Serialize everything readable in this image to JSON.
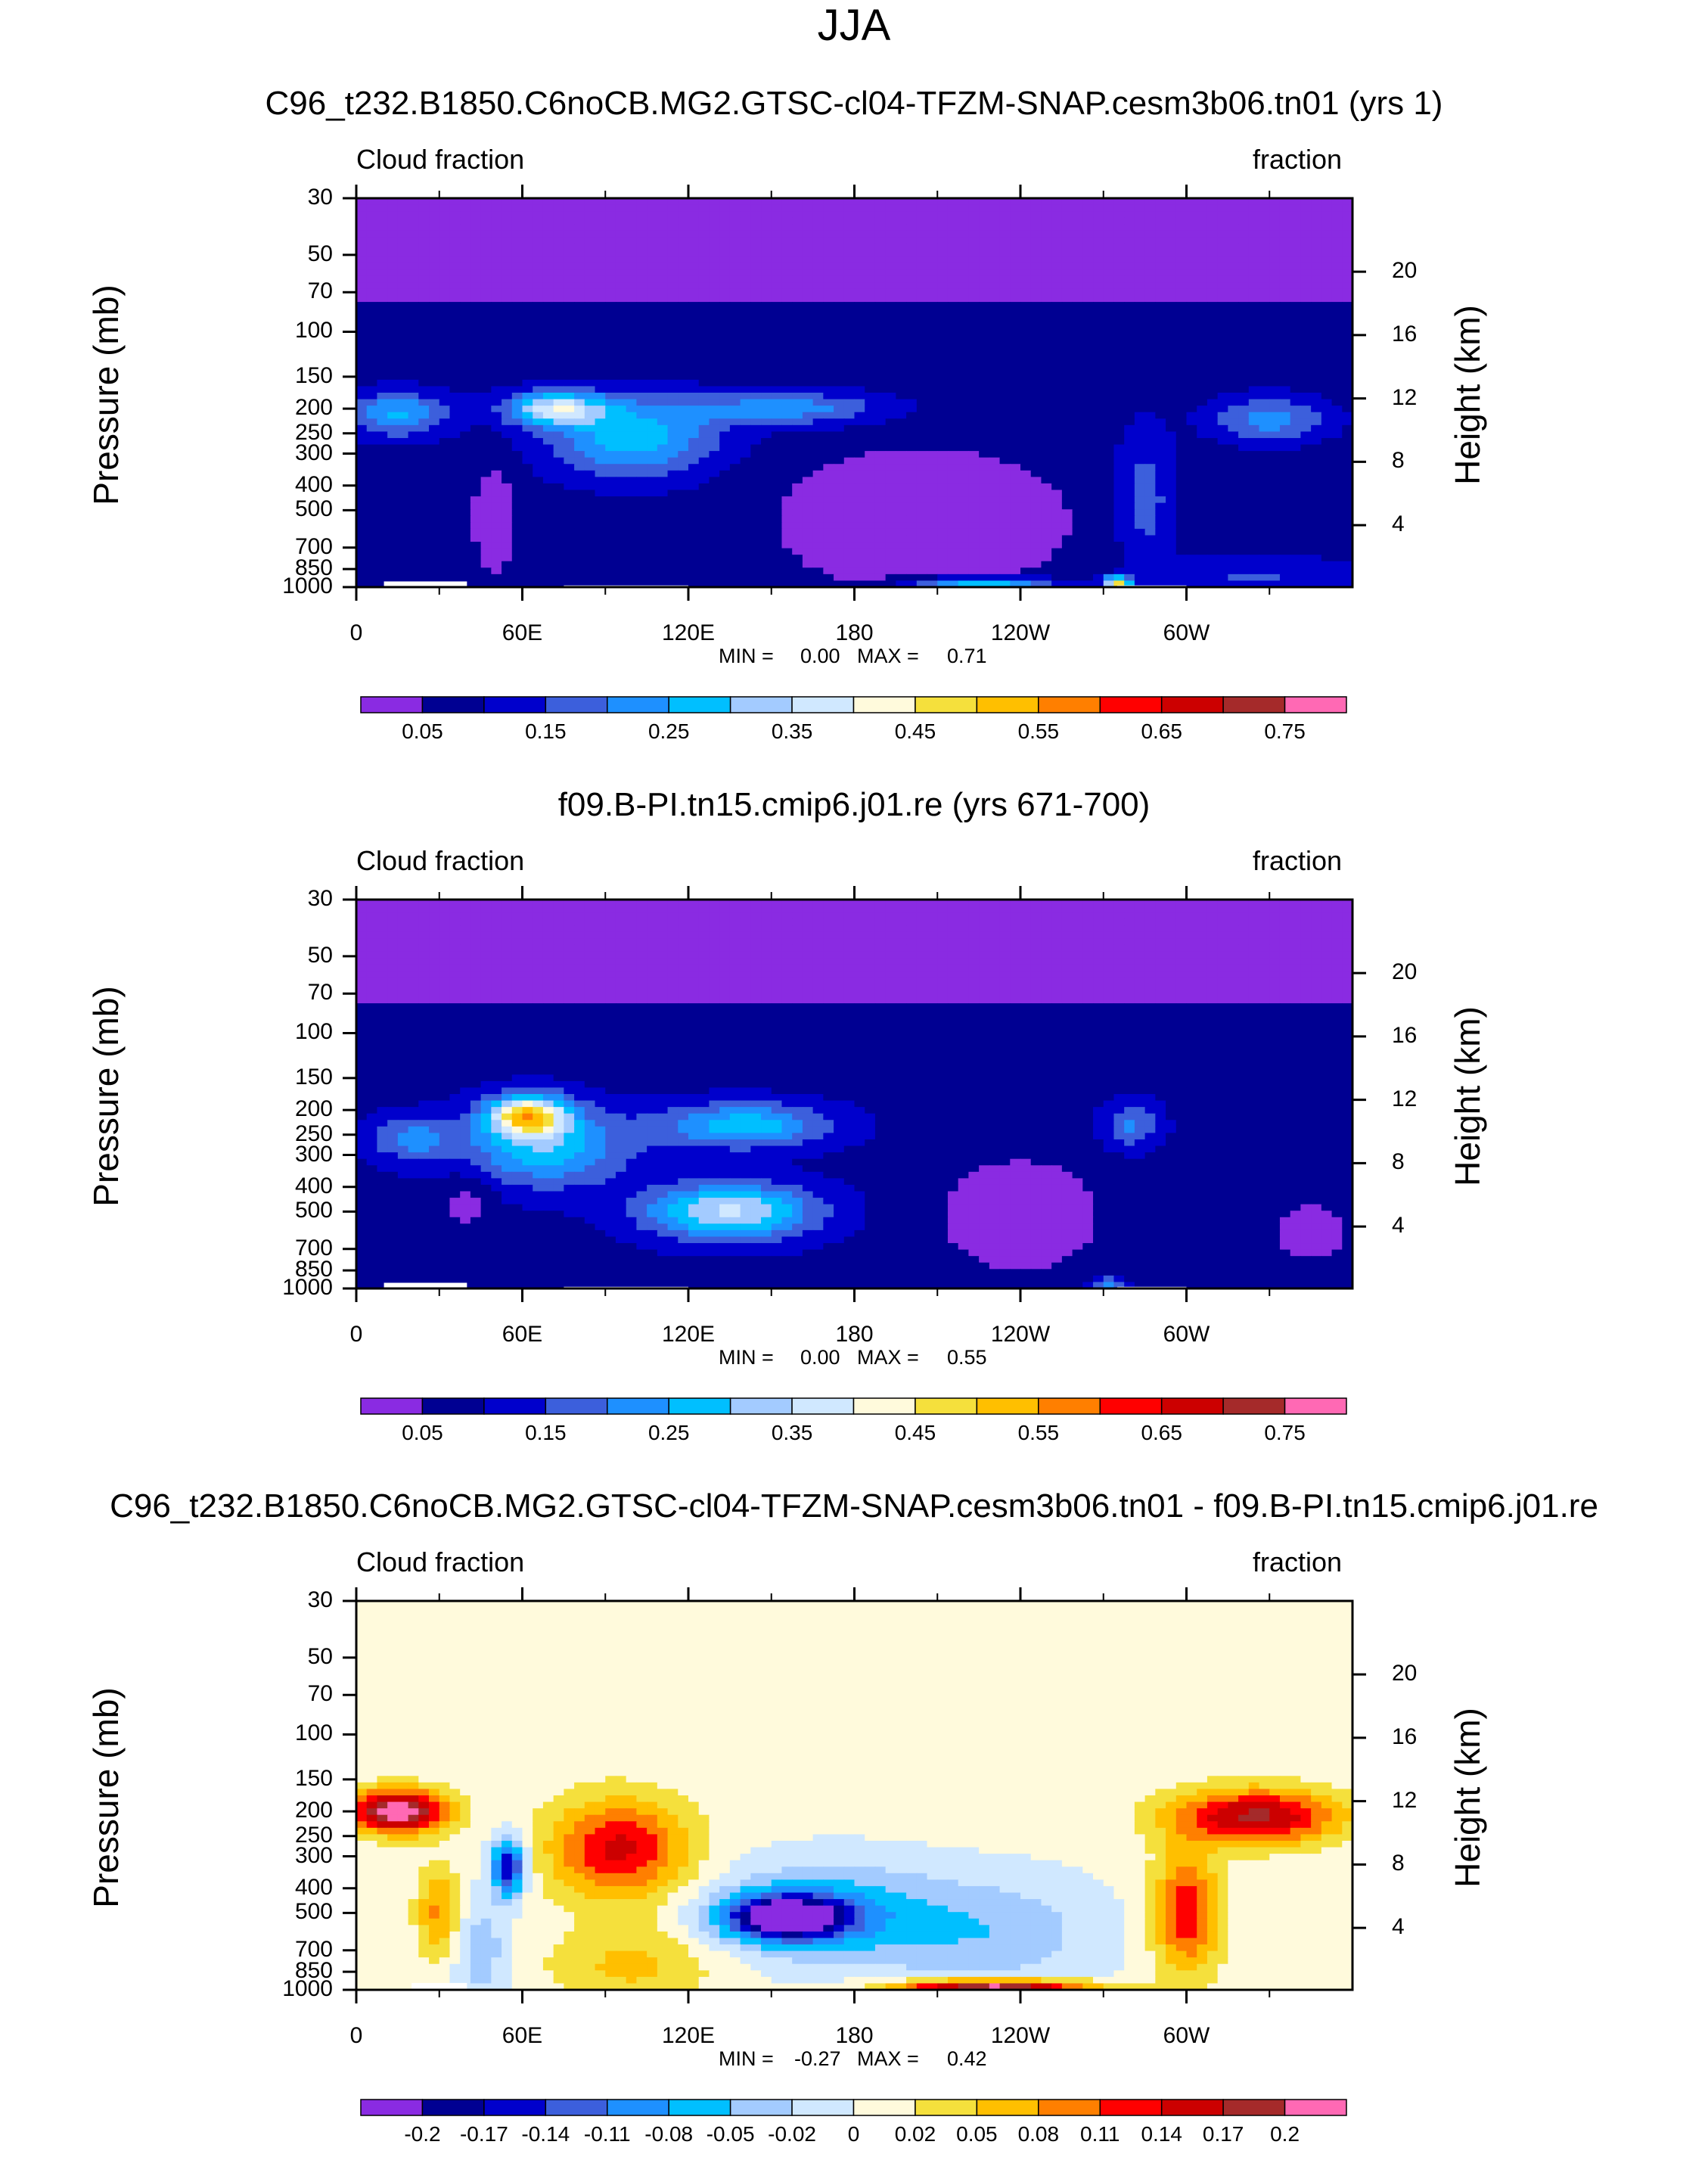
{
  "page": {
    "title": "JJA"
  },
  "chart_data": [
    {
      "type": "heatmap",
      "title": "C96_t232.B1850.C6noCB.MG2.GTSC-cl04-TFZM-SNAP.cesm3b06.tn01 (yrs 1)",
      "left_label": "Cloud fraction",
      "right_label": "fraction",
      "ylabel": "Pressure (mb)",
      "y2label": "Height (km)",
      "x_ticks": [
        "0",
        "60E",
        "120E",
        "180",
        "120W",
        "60W"
      ],
      "y_ticks": [
        "30",
        "50",
        "70",
        "100",
        "150",
        "200",
        "250",
        "300",
        "400",
        "500",
        "700",
        "850",
        "1000"
      ],
      "y2_ticks": [
        "20",
        "16",
        "12",
        "8",
        "4"
      ],
      "min_label": "MIN =",
      "min_value": "0.00",
      "max_label": "MAX =",
      "max_value": "0.71",
      "colorbar_labels": [
        "0.05",
        "0.15",
        "0.25",
        "0.35",
        "0.45",
        "0.55",
        "0.65",
        "0.75"
      ],
      "colorbar_colors": [
        "#8a2be2",
        "#000092",
        "#0000cc",
        "#3c5fdc",
        "#1e90ff",
        "#00bfff",
        "#a3cbff",
        "#d0e8ff",
        "#fffadc",
        "#f5e03c",
        "#ffbf00",
        "#ff7f00",
        "#ff0000",
        "#cc0000",
        "#a52a2a",
        "#ff69b4"
      ]
    },
    {
      "type": "heatmap",
      "title": "f09.B-PI.tn15.cmip6.j01.re (yrs 671-700)",
      "left_label": "Cloud fraction",
      "right_label": "fraction",
      "ylabel": "Pressure (mb)",
      "y2label": "Height (km)",
      "x_ticks": [
        "0",
        "60E",
        "120E",
        "180",
        "120W",
        "60W"
      ],
      "y_ticks": [
        "30",
        "50",
        "70",
        "100",
        "150",
        "200",
        "250",
        "300",
        "400",
        "500",
        "700",
        "850",
        "1000"
      ],
      "y2_ticks": [
        "20",
        "16",
        "12",
        "8",
        "4"
      ],
      "min_label": "MIN =",
      "min_value": "0.00",
      "max_label": "MAX =",
      "max_value": "0.55",
      "colorbar_labels": [
        "0.05",
        "0.15",
        "0.25",
        "0.35",
        "0.45",
        "0.55",
        "0.65",
        "0.75"
      ],
      "colorbar_colors": [
        "#8a2be2",
        "#000092",
        "#0000cc",
        "#3c5fdc",
        "#1e90ff",
        "#00bfff",
        "#a3cbff",
        "#d0e8ff",
        "#fffadc",
        "#f5e03c",
        "#ffbf00",
        "#ff7f00",
        "#ff0000",
        "#cc0000",
        "#a52a2a",
        "#ff69b4"
      ]
    },
    {
      "type": "heatmap",
      "title": "C96_t232.B1850.C6noCB.MG2.GTSC-cl04-TFZM-SNAP.cesm3b06.tn01 - f09.B-PI.tn15.cmip6.j01.re",
      "left_label": "Cloud fraction",
      "right_label": "fraction",
      "ylabel": "Pressure (mb)",
      "y2label": "Height (km)",
      "x_ticks": [
        "0",
        "60E",
        "120E",
        "180",
        "120W",
        "60W"
      ],
      "y_ticks": [
        "30",
        "50",
        "70",
        "100",
        "150",
        "200",
        "250",
        "300",
        "400",
        "500",
        "700",
        "850",
        "1000"
      ],
      "y2_ticks": [
        "20",
        "16",
        "12",
        "8",
        "4"
      ],
      "min_label": "MIN =",
      "min_value": "-0.27",
      "max_label": "MAX =",
      "max_value": "0.42",
      "colorbar_labels": [
        "-0.2",
        "-0.17",
        "-0.14",
        "-0.11",
        "-0.08",
        "-0.05",
        "-0.02",
        "0",
        "0.02",
        "0.05",
        "0.08",
        "0.11",
        "0.14",
        "0.17",
        "0.2"
      ],
      "colorbar_colors": [
        "#8a2be2",
        "#000092",
        "#0000cc",
        "#3c5fdc",
        "#1e90ff",
        "#00bfff",
        "#a3cbff",
        "#d0e8ff",
        "#fffadc",
        "#f5e03c",
        "#ffbf00",
        "#ff7f00",
        "#ff0000",
        "#cc0000",
        "#a52a2a",
        "#ff69b4"
      ]
    }
  ]
}
